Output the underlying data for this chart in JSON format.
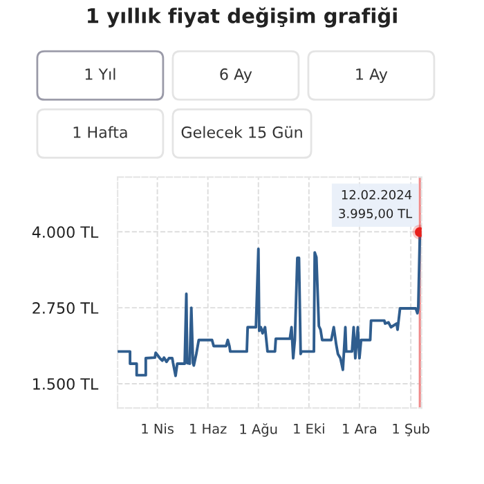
{
  "chart_data": {
    "type": "line",
    "title": "1 yıllık fiyat değişim grafiği",
    "x": [
      "2023-02-13",
      "2023-02-27",
      "2023-02-27",
      "2023-03-07",
      "2023-03-07",
      "2023-03-18",
      "2023-03-18",
      "2023-03-29",
      "2023-03-30",
      "2023-04-04",
      "2023-04-07",
      "2023-04-09",
      "2023-04-12",
      "2023-04-15",
      "2023-04-19",
      "2023-04-20",
      "2023-04-23",
      "2023-04-25",
      "2023-05-04",
      "2023-05-06",
      "2023-05-07",
      "2023-05-10",
      "2023-05-12",
      "2023-05-14",
      "2023-05-15",
      "2023-05-18",
      "2023-05-21",
      "2023-06-06",
      "2023-06-08",
      "2023-06-12",
      "2023-06-23",
      "2023-06-25",
      "2023-06-27",
      "2023-06-28",
      "2023-07-18",
      "2023-07-19",
      "2023-07-29",
      "2023-08-01",
      "2023-08-02",
      "2023-08-04",
      "2023-08-06",
      "2023-08-09",
      "2023-08-12",
      "2023-08-21",
      "2023-08-22",
      "2023-09-08",
      "2023-09-10",
      "2023-09-12",
      "2023-09-14",
      "2023-09-17",
      "2023-09-19",
      "2023-09-21",
      "2023-09-22",
      "2023-10-07",
      "2023-10-08",
      "2023-10-10",
      "2023-10-13",
      "2023-10-15",
      "2023-10-17",
      "2023-10-28",
      "2023-10-31",
      "2023-11-03",
      "2023-11-05",
      "2023-11-08",
      "2023-11-11",
      "2023-11-14",
      "2023-11-15",
      "2023-11-22",
      "2023-11-24",
      "2023-11-26",
      "2023-11-29",
      "2023-12-01",
      "2023-12-03",
      "2023-12-14",
      "2023-12-15",
      "2023-12-31",
      "2024-01-01",
      "2024-01-05",
      "2024-01-08",
      "2024-01-15",
      "2024-01-16",
      "2024-01-19",
      "2024-02-07",
      "2024-02-09",
      "2024-02-10",
      "2024-02-12"
    ],
    "series": [
      {
        "color": "#2f5d8e",
        "values": [
          2030,
          2030,
          1830,
          1830,
          1640,
          1640,
          1920,
          1930,
          2010,
          1920,
          1880,
          1930,
          1860,
          1920,
          1920,
          1840,
          1630,
          1830,
          1830,
          2980,
          1840,
          1830,
          2750,
          1840,
          1800,
          1990,
          2220,
          2220,
          2120,
          2120,
          2120,
          2220,
          2120,
          2030,
          2030,
          2430,
          2430,
          3720,
          2370,
          2430,
          2330,
          2430,
          2030,
          2030,
          2240,
          2240,
          2430,
          1920,
          2220,
          3570,
          3570,
          1990,
          2030,
          2030,
          3660,
          3580,
          2450,
          2390,
          2220,
          2220,
          2430,
          2140,
          1990,
          1920,
          1730,
          2430,
          2030,
          2030,
          2430,
          1920,
          2430,
          1920,
          2220,
          2220,
          2540,
          2540,
          2490,
          2510,
          2430,
          2490,
          2390,
          2740,
          2740,
          2660,
          2740,
          3990
        ]
      },
      {
        "type": "scatter",
        "color": "#e8201c",
        "x": [
          "2024-02-12"
        ],
        "values": [
          3995
        ]
      }
    ],
    "xlim": [
      "2023-02-12",
      "2024-02-14"
    ],
    "xticks": [
      {
        "value": "2023-04-01",
        "label": "1 Nis"
      },
      {
        "value": "2023-06-01",
        "label": "1 Haz"
      },
      {
        "value": "2023-08-01",
        "label": "1 Ağu"
      },
      {
        "value": "2023-10-01",
        "label": "1 Eki"
      },
      {
        "value": "2023-12-01",
        "label": "1 Ara"
      },
      {
        "value": "2024-02-01",
        "label": "1 Şub"
      }
    ],
    "ylim": [
      1100,
      4900
    ],
    "yticks": [
      {
        "value": 1500,
        "label": "1.500 TL"
      },
      {
        "value": 2750,
        "label": "2.750 TL"
      },
      {
        "value": 4000,
        "label": "4.000 TL"
      }
    ],
    "grid": true,
    "ref_lines": [
      {
        "axis": "x",
        "value": "2024-02-12",
        "color": "#f08a8a"
      }
    ],
    "annotations": [
      {
        "text": "12.02.2024\n3.995,00 TL",
        "x": "2024-02-12",
        "y": 3995
      },
      "1 Yıl",
      "6 Ay",
      "1 Ay",
      "1 Hafta",
      "Gelecek 15 Gün"
    ]
  }
}
